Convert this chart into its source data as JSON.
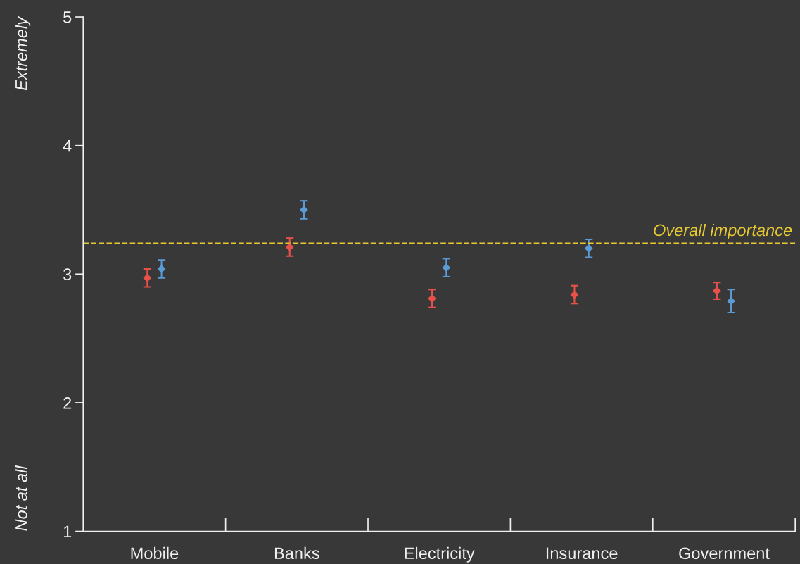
{
  "chart_data": {
    "type": "scatter",
    "categories": [
      "Mobile",
      "Banks",
      "Electricity",
      "Insurance",
      "Government"
    ],
    "series": [
      {
        "color": "#e8514a",
        "values": [
          2.97,
          3.21,
          2.81,
          2.84,
          2.87
        ],
        "errors": [
          0.07,
          0.07,
          0.07,
          0.07,
          0.065
        ]
      },
      {
        "color": "#5b9bd5",
        "values": [
          3.04,
          3.5,
          3.05,
          3.2,
          2.79
        ],
        "errors": [
          0.07,
          0.07,
          0.07,
          0.07,
          0.09
        ]
      }
    ],
    "marker": "diamond",
    "ylim": [
      1,
      5
    ],
    "yticks": [
      1,
      2,
      3,
      4,
      5
    ],
    "grid": false,
    "legend": false,
    "ref_lines": [
      {
        "axis": "y",
        "value": 3.24,
        "label": "Overall importance",
        "color": "#e6c832",
        "line_style": "dashed"
      }
    ],
    "annotations": [
      "Not at all",
      "Extremely"
    ]
  }
}
